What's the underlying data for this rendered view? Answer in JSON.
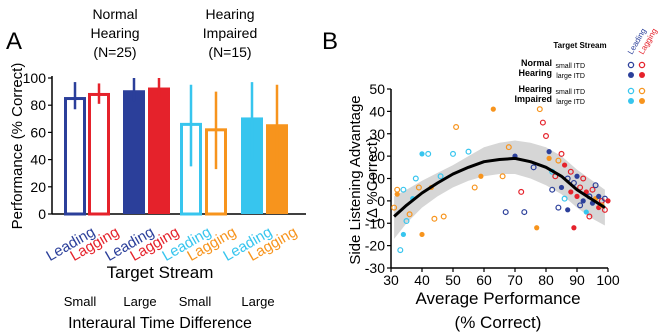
{
  "colors": {
    "nh_leading": "#2b3f9a",
    "nh_lagging": "#e5222b",
    "hi_leading": "#37c5ee",
    "hi_lagging": "#f7941d",
    "band": "#d6d6d6",
    "fit": "#000000"
  },
  "chart_data": [
    {
      "type": "bar",
      "panel_label": "A",
      "ylabel": "Performance (% Correct)",
      "xlabel": "Target Stream",
      "ylim": [
        0,
        100
      ],
      "yticks": [
        "0",
        "20",
        "40",
        "60",
        "80",
        "100"
      ],
      "group_titles": [
        {
          "lines": [
            "Normal",
            "Hearing",
            "(N=25)"
          ]
        },
        {
          "lines": [
            "Hearing",
            "Impaired",
            "(N=15)"
          ]
        }
      ],
      "itd_title": "Interaural Time Difference",
      "itd_labels": [
        "Small",
        "Large",
        "Small",
        "Large"
      ],
      "bars": [
        {
          "group": "Normal Hearing",
          "itd": "Small",
          "stream": "Leading",
          "value": 86,
          "err_low": 77,
          "err_high": 97,
          "filled": false,
          "color_key": "nh_leading"
        },
        {
          "group": "Normal Hearing",
          "itd": "Small",
          "stream": "Lagging",
          "value": 89,
          "err_low": 81,
          "err_high": 96,
          "filled": false,
          "color_key": "nh_lagging"
        },
        {
          "group": "Normal Hearing",
          "itd": "Large",
          "stream": "Leading",
          "value": 91,
          "err_low": 83,
          "err_high": 100,
          "filled": true,
          "color_key": "nh_leading"
        },
        {
          "group": "Normal Hearing",
          "itd": "Large",
          "stream": "Lagging",
          "value": 93,
          "err_low": 86,
          "err_high": 100,
          "filled": true,
          "color_key": "nh_lagging"
        },
        {
          "group": "Hearing Impaired",
          "itd": "Small",
          "stream": "Leading",
          "value": 67,
          "err_low": 35,
          "err_high": 95,
          "filled": false,
          "color_key": "hi_leading"
        },
        {
          "group": "Hearing Impaired",
          "itd": "Small",
          "stream": "Lagging",
          "value": 63,
          "err_low": 33,
          "err_high": 90,
          "filled": false,
          "color_key": "hi_lagging"
        },
        {
          "group": "Hearing Impaired",
          "itd": "Large",
          "stream": "Leading",
          "value": 71,
          "err_low": 40,
          "err_high": 97,
          "filled": true,
          "color_key": "hi_leading"
        },
        {
          "group": "Hearing Impaired",
          "itd": "Large",
          "stream": "Lagging",
          "value": 66,
          "err_low": 33,
          "err_high": 95,
          "filled": true,
          "color_key": "hi_lagging"
        }
      ],
      "stream_labels": [
        "Leading",
        "Lagging"
      ]
    },
    {
      "type": "scatter",
      "panel_label": "B",
      "ylabel_lines": [
        "Side Listening Advantage",
        "(Δ %Correct)"
      ],
      "xlabel_lines": [
        "Average Performance",
        "(% Correct)"
      ],
      "xlim": [
        30,
        100
      ],
      "ylim": [
        -30,
        50
      ],
      "xticks": [
        "30",
        "40",
        "50",
        "60",
        "70",
        "80",
        "90",
        "100"
      ],
      "yticks": [
        "-30",
        "-20",
        "-10",
        "0",
        "10",
        "20",
        "30",
        "40",
        "50"
      ],
      "legend": {
        "title": "Target Stream",
        "stream_labels": [
          "Leading",
          "Lagging"
        ],
        "groups": [
          {
            "name_lines": [
              "Normal",
              "Hearing"
            ],
            "itd_labels": [
              "small ITD",
              "large ITD"
            ],
            "color_keys": [
              "nh_leading",
              "nh_lagging"
            ]
          },
          {
            "name_lines": [
              "Hearing",
              "Impaired"
            ],
            "itd_labels": [
              "small ITD",
              "large ITD"
            ],
            "color_keys": [
              "hi_leading",
              "hi_lagging"
            ]
          }
        ]
      },
      "fit_curve": {
        "x": [
          31,
          35,
          40,
          45,
          50,
          55,
          60,
          65,
          70,
          75,
          80,
          85,
          90,
          95,
          99
        ],
        "y": [
          -7,
          -2,
          3.5,
          8,
          12,
          15,
          17.5,
          18.5,
          19,
          17.5,
          15,
          11,
          5,
          0.5,
          -3
        ]
      },
      "ci_band": {
        "x": [
          31,
          35,
          40,
          45,
          50,
          55,
          60,
          65,
          70,
          75,
          80,
          85,
          90,
          95,
          99
        ],
        "upper": [
          2,
          5,
          9,
          12.5,
          16,
          20,
          24,
          26,
          27,
          26,
          24,
          20,
          14,
          9,
          5
        ],
        "lower": [
          -17,
          -10,
          -3,
          2,
          6,
          9,
          11,
          12,
          12,
          10,
          7,
          3,
          -3,
          -8,
          -11
        ]
      },
      "points": [
        {
          "x": 31,
          "y": -3,
          "c": "hi_lagging",
          "f": false
        },
        {
          "x": 32,
          "y": 3,
          "c": "hi_lagging",
          "f": true
        },
        {
          "x": 32,
          "y": 5,
          "c": "hi_lagging",
          "f": false
        },
        {
          "x": 33,
          "y": -22,
          "c": "hi_leading",
          "f": false
        },
        {
          "x": 34,
          "y": -15,
          "c": "hi_leading",
          "f": true
        },
        {
          "x": 34,
          "y": 5,
          "c": "hi_leading",
          "f": false
        },
        {
          "x": 35,
          "y": -9,
          "c": "hi_leading",
          "f": false
        },
        {
          "x": 36,
          "y": -6,
          "c": "hi_lagging",
          "f": false
        },
        {
          "x": 37,
          "y": 1,
          "c": "hi_leading",
          "f": true
        },
        {
          "x": 38,
          "y": 10,
          "c": "hi_leading",
          "f": false
        },
        {
          "x": 39,
          "y": 6,
          "c": "hi_lagging",
          "f": false
        },
        {
          "x": 40,
          "y": -15,
          "c": "hi_lagging",
          "f": true
        },
        {
          "x": 40,
          "y": 21,
          "c": "hi_leading",
          "f": true
        },
        {
          "x": 42,
          "y": 21,
          "c": "hi_leading",
          "f": false
        },
        {
          "x": 43,
          "y": 6,
          "c": "hi_lagging",
          "f": true
        },
        {
          "x": 44,
          "y": -8,
          "c": "hi_lagging",
          "f": false
        },
        {
          "x": 46,
          "y": 11,
          "c": "hi_leading",
          "f": false
        },
        {
          "x": 47,
          "y": -7,
          "c": "hi_lagging",
          "f": false
        },
        {
          "x": 50,
          "y": 21,
          "c": "hi_leading",
          "f": false
        },
        {
          "x": 51,
          "y": 33,
          "c": "hi_lagging",
          "f": false
        },
        {
          "x": 55,
          "y": 22,
          "c": "hi_leading",
          "f": false
        },
        {
          "x": 57,
          "y": 6,
          "c": "hi_lagging",
          "f": false
        },
        {
          "x": 59,
          "y": 11,
          "c": "hi_lagging",
          "f": true
        },
        {
          "x": 63,
          "y": 41,
          "c": "hi_lagging",
          "f": true
        },
        {
          "x": 66,
          "y": 11,
          "c": "hi_lagging",
          "f": false
        },
        {
          "x": 67,
          "y": -5,
          "c": "nh_leading",
          "f": false
        },
        {
          "x": 68,
          "y": 24,
          "c": "hi_lagging",
          "f": false
        },
        {
          "x": 70,
          "y": 20,
          "c": "nh_leading",
          "f": true
        },
        {
          "x": 72,
          "y": 4,
          "c": "nh_lagging",
          "f": false
        },
        {
          "x": 73,
          "y": -5,
          "c": "nh_leading",
          "f": false
        },
        {
          "x": 76,
          "y": 15,
          "c": "nh_leading",
          "f": false
        },
        {
          "x": 77,
          "y": -12,
          "c": "hi_lagging",
          "f": true
        },
        {
          "x": 78,
          "y": 41,
          "c": "hi_lagging",
          "f": false
        },
        {
          "x": 79,
          "y": 35,
          "c": "nh_lagging",
          "f": false
        },
        {
          "x": 80,
          "y": 29,
          "c": "nh_lagging",
          "f": false
        },
        {
          "x": 81,
          "y": 22,
          "c": "nh_leading",
          "f": true
        },
        {
          "x": 81,
          "y": 19,
          "c": "hi_lagging",
          "f": true
        },
        {
          "x": 82,
          "y": 5,
          "c": "nh_leading",
          "f": false
        },
        {
          "x": 82,
          "y": 13,
          "c": "hi_leading",
          "f": false
        },
        {
          "x": 83,
          "y": 11,
          "c": "nh_lagging",
          "f": false
        },
        {
          "x": 84,
          "y": -3,
          "c": "nh_leading",
          "f": false
        },
        {
          "x": 84,
          "y": 18,
          "c": "hi_lagging",
          "f": false
        },
        {
          "x": 85,
          "y": 21,
          "c": "nh_lagging",
          "f": false
        },
        {
          "x": 85,
          "y": 6,
          "c": "nh_leading",
          "f": true
        },
        {
          "x": 86,
          "y": 16,
          "c": "nh_lagging",
          "f": true
        },
        {
          "x": 86,
          "y": 1,
          "c": "hi_leading",
          "f": false
        },
        {
          "x": 87,
          "y": 10,
          "c": "nh_leading",
          "f": false
        },
        {
          "x": 87,
          "y": -4,
          "c": "nh_leading",
          "f": true
        },
        {
          "x": 88,
          "y": 13,
          "c": "nh_lagging",
          "f": false
        },
        {
          "x": 88,
          "y": 4,
          "c": "nh_lagging",
          "f": true
        },
        {
          "x": 89,
          "y": -12,
          "c": "nh_lagging",
          "f": true
        },
        {
          "x": 89,
          "y": 8,
          "c": "nh_leading",
          "f": false
        },
        {
          "x": 90,
          "y": 2,
          "c": "nh_lagging",
          "f": true
        },
        {
          "x": 90,
          "y": 11,
          "c": "nh_leading",
          "f": true
        },
        {
          "x": 91,
          "y": -2,
          "c": "nh_leading",
          "f": false
        },
        {
          "x": 91,
          "y": 6,
          "c": "nh_lagging",
          "f": false
        },
        {
          "x": 92,
          "y": 0,
          "c": "nh_leading",
          "f": true
        },
        {
          "x": 92,
          "y": 10,
          "c": "nh_lagging",
          "f": false
        },
        {
          "x": 93,
          "y": -5,
          "c": "hi_leading",
          "f": true
        },
        {
          "x": 93,
          "y": 4,
          "c": "nh_lagging",
          "f": true
        },
        {
          "x": 94,
          "y": 2,
          "c": "nh_leading",
          "f": false
        },
        {
          "x": 94,
          "y": -7,
          "c": "nh_lagging",
          "f": false
        },
        {
          "x": 95,
          "y": 5,
          "c": "nh_lagging",
          "f": false
        },
        {
          "x": 95,
          "y": -1,
          "c": "nh_leading",
          "f": true
        },
        {
          "x": 96,
          "y": 1,
          "c": "hi_lagging",
          "f": true
        },
        {
          "x": 96,
          "y": 7,
          "c": "nh_leading",
          "f": false
        },
        {
          "x": 97,
          "y": -3,
          "c": "nh_lagging",
          "f": true
        },
        {
          "x": 97,
          "y": 2,
          "c": "nh_leading",
          "f": true
        },
        {
          "x": 98,
          "y": 0,
          "c": "nh_lagging",
          "f": false
        },
        {
          "x": 98,
          "y": -2,
          "c": "hi_lagging",
          "f": true
        },
        {
          "x": 99,
          "y": 1,
          "c": "nh_leading",
          "f": false
        },
        {
          "x": 99,
          "y": -4,
          "c": "nh_lagging",
          "f": false
        },
        {
          "x": 100,
          "y": 0,
          "c": "nh_lagging",
          "f": true
        }
      ]
    }
  ]
}
